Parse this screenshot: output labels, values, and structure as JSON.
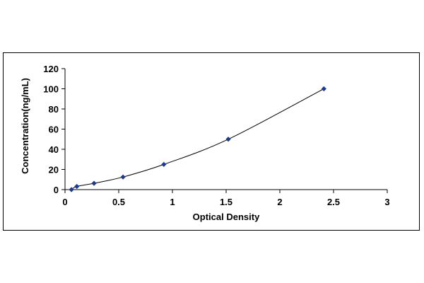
{
  "chart_data": {
    "type": "scatter",
    "title": "",
    "xlabel": "Optical Density",
    "ylabel": "Concentration(ng/mL)",
    "xlim": [
      0,
      3
    ],
    "ylim": [
      0,
      120
    ],
    "x_ticks": [
      "0",
      "0.5",
      "1",
      "1.5",
      "2",
      "2.5",
      "3"
    ],
    "y_ticks": [
      "0",
      "20",
      "40",
      "60",
      "80",
      "100",
      "120"
    ],
    "grid": false,
    "legend": "none",
    "series": [
      {
        "x": [
          0.06,
          0.11,
          0.27,
          0.54,
          0.92,
          1.52,
          2.41
        ],
        "y": [
          0,
          3.13,
          6.25,
          12.5,
          25,
          50,
          100
        ],
        "marker": "diamond",
        "marker_color": "#1f3a8a",
        "line": "smooth",
        "line_color": "#000000"
      }
    ]
  }
}
